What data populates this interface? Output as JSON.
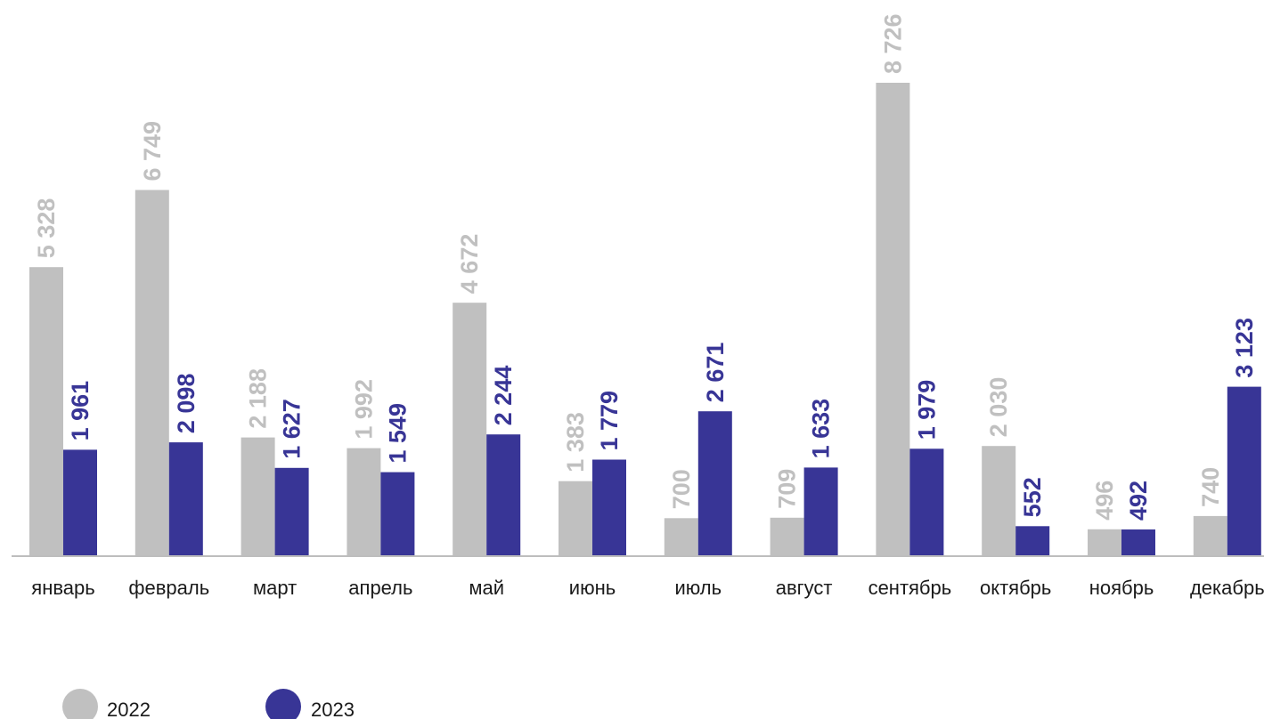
{
  "chart_data": {
    "type": "bar",
    "categories": [
      "январь",
      "февраль",
      "март",
      "апрель",
      "май",
      "июнь",
      "июль",
      "август",
      "сентябрь",
      "октябрь",
      "ноябрь",
      "декабрь"
    ],
    "series": [
      {
        "name": "2022",
        "color": "#c0c0c0",
        "values": [
          5328,
          6749,
          2188,
          1992,
          4672,
          1383,
          700,
          709,
          8726,
          2030,
          496,
          740
        ],
        "labels": [
          "5 328",
          "6 749",
          "2 188",
          "1 992",
          "4 672",
          "1 383",
          "700",
          "709",
          "8 726",
          "2 030",
          "496",
          "740"
        ]
      },
      {
        "name": "2023",
        "color": "#383596",
        "values": [
          1961,
          2098,
          1627,
          1549,
          2244,
          1779,
          2671,
          1633,
          1979,
          552,
          492,
          3123
        ],
        "labels": [
          "1 961",
          "2 098",
          "1 627",
          "1 549",
          "2 244",
          "1 779",
          "2 671",
          "1 633",
          "1 979",
          "552",
          "492",
          "3 123"
        ]
      }
    ],
    "title": "",
    "xlabel": "",
    "ylabel": "",
    "ylim": [
      0,
      8726
    ],
    "grid": false,
    "legend_position": "bottom-left",
    "data_labels": "rotated-vertical"
  }
}
